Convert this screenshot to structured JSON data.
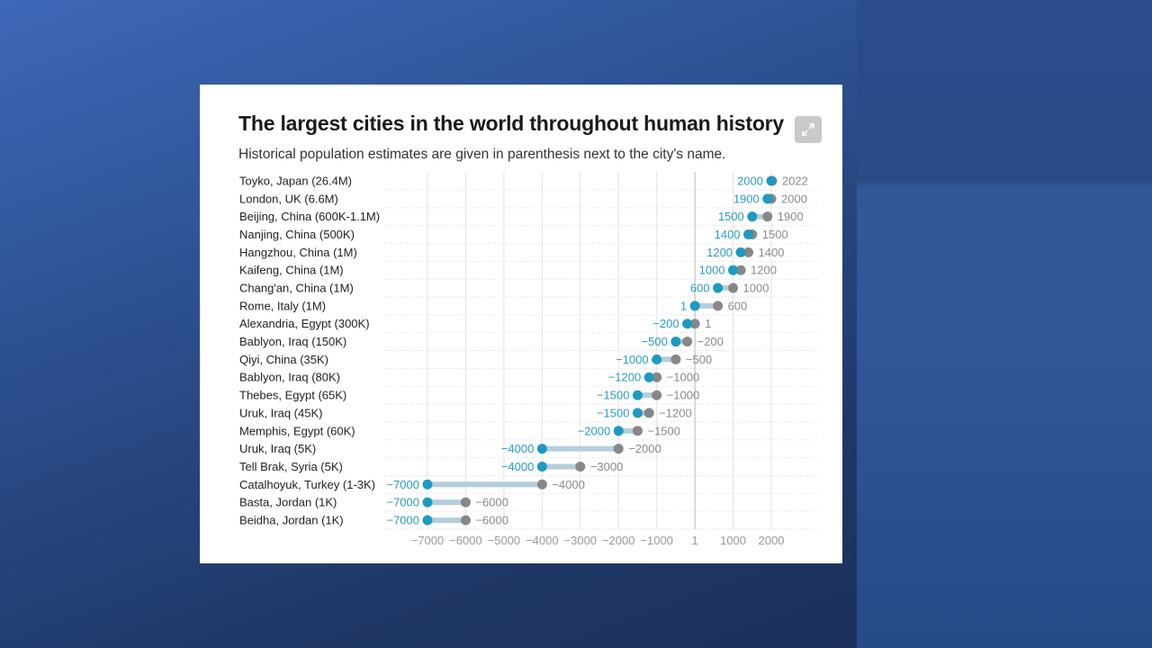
{
  "colors": {
    "start": "#1e9ac2",
    "end": "#878787",
    "start_label": "#2a9bc4",
    "end_label": "#8a8a8a",
    "link": "#b5cedb"
  },
  "chart_data": {
    "type": "dumbbell",
    "title": "The largest cities in the world throughout human history",
    "subtitle": "Historical population estimates are given in parenthesis next to the city's name.",
    "x_ticks": [
      "−7000",
      "−6000",
      "−5000",
      "−4000",
      "−3000",
      "−2000",
      "−1000",
      "1",
      "1000",
      "2000"
    ],
    "grid": true,
    "categories": [
      "Toyko, Japan (26.4M)",
      "London, UK (6.6M)",
      "Beijing, China (600K-1.1M)",
      "Nanjing, China (500K)",
      "Hangzhou, China (1M)",
      "Kaifeng, China (1M)",
      "Chang'an, China (1M)",
      "Rome, Italy (1M)",
      "Alexandria, Egypt (300K)",
      "Bablyon, Iraq (150K)",
      "Qiyi, China (35K)",
      "Bablyon, Iraq (80K)",
      "Thebes, Egypt (65K)",
      "Uruk, Iraq (45K)",
      "Memphis, Egypt (60K)",
      "Uruk, Iraq (5K)",
      "Tell Brak, Syria (5K)",
      "Catalhoyuk, Turkey (1-3K)",
      "Basta, Jordan (1K)",
      "Beidha, Jordan (1K)"
    ],
    "start": [
      2000,
      1900,
      1500,
      1400,
      1200,
      1000,
      600,
      1,
      -200,
      -500,
      -1000,
      -1200,
      -1500,
      -1500,
      -2000,
      -4000,
      -4000,
      -7000,
      -7000,
      -7000
    ],
    "end": [
      2022,
      2000,
      1900,
      1500,
      1400,
      1200,
      1000,
      600,
      1,
      -200,
      -500,
      -1000,
      -1000,
      -1200,
      -1500,
      -2000,
      -3000,
      -4000,
      -6000,
      -6000
    ]
  }
}
